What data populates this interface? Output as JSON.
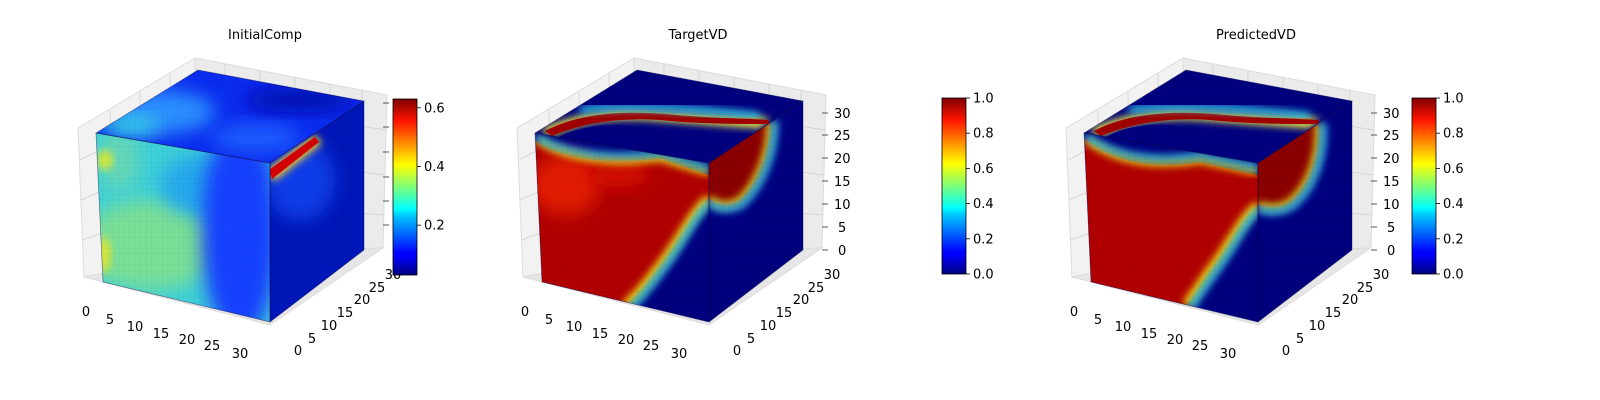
{
  "chart_data": [
    {
      "type": "voxel-3d",
      "title": "InitialComp",
      "axes": {
        "x": {
          "range": [
            0,
            32
          ],
          "ticks": [
            "0",
            "5",
            "10",
            "15",
            "20",
            "25",
            "30"
          ]
        },
        "y": {
          "range": [
            0,
            32
          ],
          "ticks": [
            "0",
            "5",
            "10",
            "15",
            "20",
            "25",
            "30"
          ]
        },
        "z": {
          "range": [
            0,
            32
          ],
          "ticks": []
        }
      },
      "colorbar": {
        "colormap": "jet",
        "range": [
          0.03,
          0.63
        ],
        "ticks": [
          0.2,
          0.4,
          0.6
        ],
        "tick_labels": [
          "0.2",
          "0.4",
          "0.6"
        ]
      },
      "field": {
        "front_face": {
          "left_value": 0.3,
          "center_value": 0.35,
          "right_value": 0.12,
          "edge_spots": 0.45
        },
        "top_face": {
          "background": 0.08,
          "blob_value": 0.3
        },
        "right_face": {
          "background": 0.05,
          "hot_bar_value": 0.62
        }
      }
    },
    {
      "type": "voxel-3d",
      "title": "TargetVD",
      "axes": {
        "x": {
          "range": [
            0,
            32
          ],
          "ticks": [
            "0",
            "5",
            "10",
            "15",
            "20",
            "25",
            "30"
          ]
        },
        "y": {
          "range": [
            0,
            32
          ],
          "ticks": [
            "0",
            "5",
            "10",
            "15",
            "20",
            "25",
            "30"
          ]
        },
        "z": {
          "range": [
            0,
            32
          ],
          "ticks": [
            "0",
            "5",
            "10",
            "15",
            "20",
            "25",
            "30"
          ]
        }
      },
      "colorbar": {
        "colormap": "jet",
        "range": [
          0.0,
          1.0
        ],
        "ticks": [
          0.0,
          0.2,
          0.4,
          0.6,
          0.8,
          1.0
        ],
        "tick_labels": [
          "0.0",
          "0.2",
          "0.4",
          "0.6",
          "0.8",
          "1.0"
        ]
      },
      "field": {
        "inside_value": 0.92,
        "outside_value": 0.02,
        "boundary_value": 0.5
      }
    },
    {
      "type": "voxel-3d",
      "title": "PredictedVD",
      "axes": {
        "x": {
          "range": [
            0,
            32
          ],
          "ticks": [
            "0",
            "5",
            "10",
            "15",
            "20",
            "25",
            "30"
          ]
        },
        "y": {
          "range": [
            0,
            32
          ],
          "ticks": [
            "0",
            "5",
            "10",
            "15",
            "20",
            "25",
            "30"
          ]
        },
        "z": {
          "range": [
            0,
            32
          ],
          "ticks": [
            "0",
            "5",
            "10",
            "15",
            "20",
            "25",
            "30"
          ]
        }
      },
      "colorbar": {
        "colormap": "jet",
        "range": [
          0.0,
          1.0
        ],
        "ticks": [
          0.0,
          0.2,
          0.4,
          0.6,
          0.8,
          1.0
        ],
        "tick_labels": [
          "0.0",
          "0.2",
          "0.4",
          "0.6",
          "0.8",
          "1.0"
        ]
      },
      "field": {
        "inside_value": 0.98,
        "outside_value": 0.02,
        "boundary_value": 0.5
      }
    }
  ]
}
